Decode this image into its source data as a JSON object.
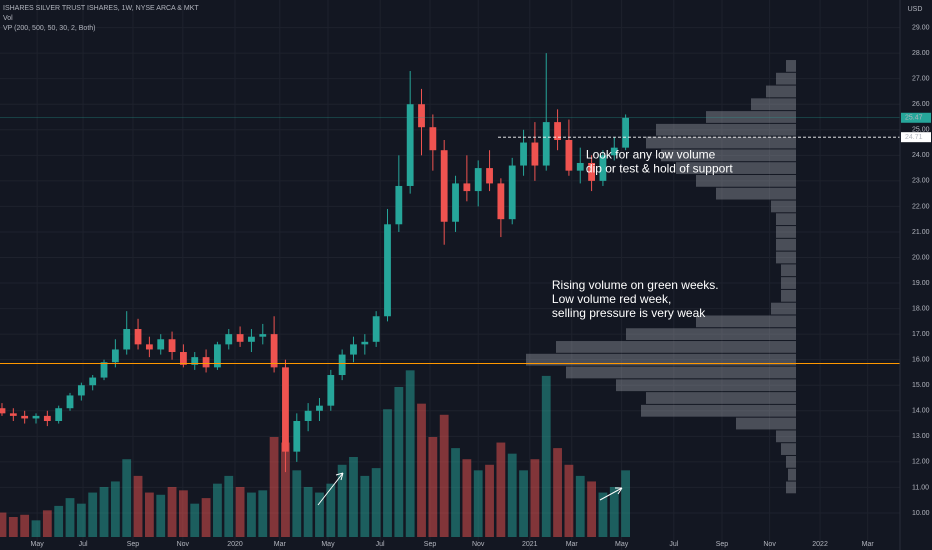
{
  "chart_data": {
    "type": "candlestick",
    "title": "ISHARES SILVER TRUST ISHARES, 1W, NYSE ARCA & MKT",
    "indicators": [
      "Vol",
      "VP (200, 500, 50, 30, 2, Both)"
    ],
    "currency": "USD",
    "annotations": [
      {
        "lines": [
          "Look for any low volume",
          "dip or test & hold of support"
        ],
        "at": [
          24.0,
          103
        ]
      },
      {
        "lines": [
          "Rising volume on green weeks.",
          "Low volume red week,",
          "selling pressure is very weak"
        ],
        "at": [
          18.9,
          97
        ]
      }
    ],
    "x": [
      0,
      2,
      4,
      6,
      8,
      10,
      12,
      14,
      16,
      18,
      20,
      22,
      24,
      26,
      28,
      30,
      32,
      34,
      36,
      38,
      40,
      42,
      44,
      46,
      48,
      50,
      52,
      54,
      56,
      58,
      60,
      62,
      64,
      66,
      68,
      70,
      72,
      74,
      76,
      78,
      80,
      82,
      84,
      86,
      88,
      90,
      92,
      94,
      96,
      98,
      100,
      102,
      104,
      106,
      108,
      110
    ],
    "ohlc": [
      [
        14.1,
        14.3,
        13.8,
        13.9
      ],
      [
        13.9,
        14.1,
        13.6,
        13.8
      ],
      [
        13.8,
        14.0,
        13.5,
        13.7
      ],
      [
        13.7,
        13.9,
        13.5,
        13.8
      ],
      [
        13.8,
        14.0,
        13.4,
        13.6
      ],
      [
        13.6,
        14.2,
        13.5,
        14.1
      ],
      [
        14.1,
        14.7,
        14.0,
        14.6
      ],
      [
        14.6,
        15.1,
        14.4,
        15.0
      ],
      [
        15.0,
        15.4,
        14.8,
        15.3
      ],
      [
        15.3,
        16.0,
        15.2,
        15.9
      ],
      [
        15.9,
        16.8,
        15.7,
        16.4
      ],
      [
        16.4,
        17.9,
        16.2,
        17.2
      ],
      [
        17.2,
        17.6,
        16.4,
        16.6
      ],
      [
        16.6,
        16.9,
        16.1,
        16.4
      ],
      [
        16.4,
        17.0,
        16.2,
        16.8
      ],
      [
        16.8,
        17.1,
        16.0,
        16.3
      ],
      [
        16.3,
        16.6,
        15.7,
        15.8
      ],
      [
        15.8,
        16.3,
        15.6,
        16.1
      ],
      [
        16.1,
        16.4,
        15.5,
        15.7
      ],
      [
        15.7,
        16.7,
        15.6,
        16.6
      ],
      [
        16.6,
        17.2,
        16.4,
        17.0
      ],
      [
        17.0,
        17.3,
        16.5,
        16.7
      ],
      [
        16.7,
        17.2,
        16.3,
        16.9
      ],
      [
        16.9,
        17.4,
        16.6,
        17.0
      ],
      [
        17.0,
        17.7,
        15.5,
        15.7
      ],
      [
        15.7,
        16.0,
        11.6,
        12.4
      ],
      [
        12.4,
        13.9,
        12.0,
        13.6
      ],
      [
        13.6,
        14.3,
        13.2,
        14.0
      ],
      [
        14.0,
        14.5,
        13.6,
        14.2
      ],
      [
        14.2,
        15.6,
        14.0,
        15.4
      ],
      [
        15.4,
        16.4,
        15.2,
        16.2
      ],
      [
        16.2,
        16.9,
        15.9,
        16.6
      ],
      [
        16.6,
        17.0,
        16.2,
        16.7
      ],
      [
        16.7,
        17.9,
        16.5,
        17.7
      ],
      [
        17.7,
        21.9,
        17.5,
        21.3
      ],
      [
        21.3,
        24.0,
        21.0,
        22.8
      ],
      [
        22.8,
        27.3,
        22.5,
        26.0
      ],
      [
        26.0,
        26.6,
        24.0,
        25.1
      ],
      [
        25.1,
        25.6,
        23.4,
        24.2
      ],
      [
        24.2,
        24.6,
        20.5,
        21.4
      ],
      [
        21.4,
        23.2,
        21.0,
        22.9
      ],
      [
        22.9,
        24.0,
        22.2,
        22.6
      ],
      [
        22.6,
        23.8,
        22.0,
        23.5
      ],
      [
        23.5,
        24.2,
        22.6,
        22.9
      ],
      [
        22.9,
        23.1,
        20.8,
        21.5
      ],
      [
        21.5,
        23.9,
        21.3,
        23.6
      ],
      [
        23.6,
        25.0,
        23.2,
        24.5
      ],
      [
        24.5,
        25.3,
        23.0,
        23.6
      ],
      [
        23.6,
        28.0,
        23.4,
        25.3
      ],
      [
        25.3,
        25.8,
        24.2,
        24.6
      ],
      [
        24.6,
        25.4,
        23.2,
        23.4
      ],
      [
        23.4,
        24.3,
        22.9,
        23.7
      ],
      [
        23.7,
        24.0,
        22.6,
        23.0
      ],
      [
        23.0,
        24.2,
        22.8,
        24.0
      ],
      [
        24.0,
        24.7,
        23.8,
        24.3
      ],
      [
        24.3,
        25.6,
        24.2,
        25.47
      ]
    ],
    "volume": [
      22,
      18,
      20,
      15,
      24,
      28,
      35,
      30,
      40,
      45,
      50,
      70,
      55,
      40,
      38,
      45,
      42,
      30,
      35,
      48,
      55,
      45,
      40,
      42,
      90,
      85,
      60,
      45,
      40,
      48,
      65,
      72,
      55,
      62,
      115,
      135,
      150,
      120,
      90,
      110,
      80,
      70,
      60,
      65,
      85,
      75,
      60,
      70,
      145,
      80,
      65,
      55,
      50,
      40,
      45,
      60
    ],
    "vlim": [
      0,
      360
    ],
    "profile_prices": [
      11,
      11.5,
      12,
      12.5,
      13,
      13.5,
      14,
      14.5,
      15,
      15.5,
      16,
      16.5,
      17,
      17.5,
      18,
      18.5,
      19,
      19.5,
      20,
      20.5,
      21,
      21.5,
      22,
      22.5,
      23,
      23.5,
      24,
      24.5,
      25,
      25.5,
      26,
      26.5,
      27,
      27.5
    ],
    "profile_values": [
      10,
      8,
      10,
      15,
      20,
      60,
      155,
      150,
      180,
      230,
      270,
      240,
      170,
      100,
      25,
      15,
      15,
      15,
      20,
      20,
      20,
      20,
      25,
      80,
      100,
      120,
      135,
      150,
      140,
      90,
      45,
      30,
      20,
      10
    ],
    "plim": [
      0,
      300
    ],
    "price_line": 24.71,
    "support_level": 15.85,
    "colors": {
      "up": "#26a69a",
      "down": "#ef5350",
      "support": "#ff9800",
      "profile": "#b2b5be"
    },
    "xlim": [
      -0.35,
      158.4
    ],
    "xticks": [
      {
        "value": 6.2,
        "label": "May"
      },
      {
        "value": 14.3,
        "label": "Jul"
      },
      {
        "value": 23.1,
        "label": "Sep"
      },
      {
        "value": 31.9,
        "label": "Nov"
      },
      {
        "value": 41.1,
        "label": "2020"
      },
      {
        "value": 49,
        "label": "Mar"
      },
      {
        "value": 57.5,
        "label": "May"
      },
      {
        "value": 66.7,
        "label": "Jul"
      },
      {
        "value": 75.5,
        "label": "Sep"
      },
      {
        "value": 84,
        "label": "Nov"
      },
      {
        "value": 93.1,
        "label": "2021"
      },
      {
        "value": 100.5,
        "label": "Mar"
      },
      {
        "value": 109.3,
        "label": "May"
      },
      {
        "value": 118.5,
        "label": "Jul"
      },
      {
        "value": 127,
        "label": "Sep"
      },
      {
        "value": 135.4,
        "label": "Nov"
      },
      {
        "value": 144.3,
        "label": "2022"
      },
      {
        "value": 152.7,
        "label": "Mar"
      }
    ],
    "ylim": [
      8.55,
      30.08
    ],
    "yticks": [
      {
        "value": 10,
        "label": "10.00"
      },
      {
        "value": 11,
        "label": "11.00"
      },
      {
        "value": 12,
        "label": "12.00"
      },
      {
        "value": 13,
        "label": "13.00"
      },
      {
        "value": 14,
        "label": "14.00"
      },
      {
        "value": 15,
        "label": "15.00"
      },
      {
        "value": 16,
        "label": "16.00"
      },
      {
        "value": 17,
        "label": "17.00"
      },
      {
        "value": 18,
        "label": "18.00"
      },
      {
        "value": 19,
        "label": "19.00"
      },
      {
        "value": 20,
        "label": "20.00"
      },
      {
        "value": 21,
        "label": "21.00"
      },
      {
        "value": 22,
        "label": "22.00"
      },
      {
        "value": 23,
        "label": "23.00"
      },
      {
        "value": 24,
        "label": "24.00"
      },
      {
        "value": 25,
        "label": "25.00"
      },
      {
        "value": 26,
        "label": "26.00"
      },
      {
        "value": 27,
        "label": "27.00"
      },
      {
        "value": 28,
        "label": "28.00"
      },
      {
        "value": 29,
        "label": "29.00"
      }
    ]
  }
}
